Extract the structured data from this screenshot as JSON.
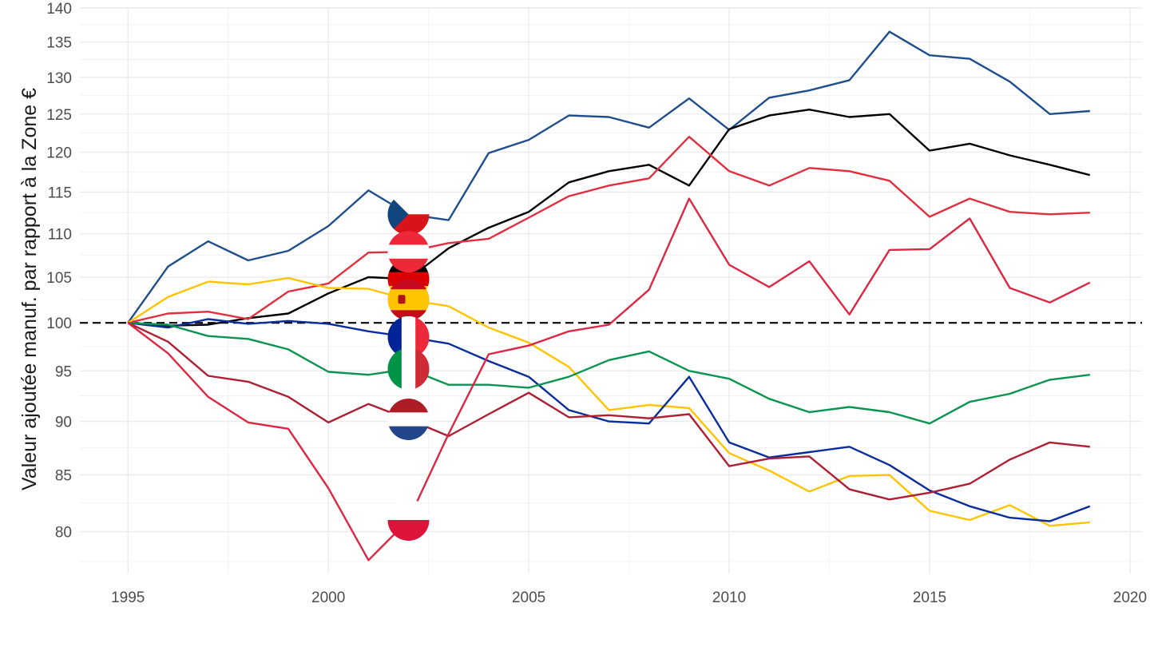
{
  "chart_data": {
    "type": "line",
    "title": "",
    "xlabel": "",
    "ylabel": "Valeur ajoutée manuf. par rapport à la Zone €",
    "xlim": [
      1993.8,
      2020.3
    ],
    "ylim": [
      76.5,
      140
    ],
    "y_scale": "log",
    "x_ticks": [
      "1995",
      "2000",
      "2005",
      "2010",
      "2015",
      "2020"
    ],
    "y_ticks": [
      "80",
      "85",
      "90",
      "95",
      "100",
      "105",
      "110",
      "115",
      "120",
      "125",
      "130",
      "135",
      "140"
    ],
    "grid": true,
    "reference_line": {
      "y": 100,
      "style": "dashed",
      "color": "#000000"
    },
    "x": [
      1995,
      1996,
      1997,
      1998,
      1999,
      2000,
      2001,
      2002,
      2003,
      2004,
      2005,
      2006,
      2007,
      2008,
      2009,
      2010,
      2011,
      2012,
      2013,
      2014,
      2015,
      2016,
      2017,
      2018,
      2019
    ],
    "flag_marker_x": 2002,
    "series": [
      {
        "flag": "czech-republic-flag",
        "color": "#1f4e8c",
        "values": [
          100,
          106.2,
          109.1,
          106.9,
          108.0,
          110.9,
          115.2,
          112.3,
          111.6,
          119.9,
          121.6,
          124.8,
          124.6,
          123.2,
          127.1,
          122.9,
          127.2,
          128.2,
          129.6,
          136.5,
          133.1,
          132.6,
          129.4,
          125.0,
          125.4
        ]
      },
      {
        "flag": "germany-flag",
        "color": "#000000",
        "values": [
          100,
          99.7,
          99.8,
          100.5,
          101.0,
          103.2,
          105.0,
          104.8,
          108.3,
          110.7,
          112.6,
          116.2,
          117.6,
          118.4,
          115.8,
          123.0,
          124.8,
          125.6,
          124.6,
          125.0,
          120.2,
          121.1,
          119.6,
          118.4,
          117.1
        ]
      },
      {
        "flag": "austria-flag",
        "color": "#e03040",
        "values": [
          100,
          101.0,
          101.2,
          100.4,
          103.4,
          104.3,
          107.8,
          107.9,
          108.9,
          109.4,
          111.9,
          114.5,
          115.8,
          116.7,
          122.0,
          117.6,
          115.8,
          118.0,
          117.6,
          116.4,
          112.0,
          114.2,
          112.6,
          112.3,
          112.5
        ]
      },
      {
        "flag": "spain-flag",
        "color": "#ffc400",
        "values": [
          100,
          102.8,
          104.5,
          104.2,
          104.9,
          103.8,
          103.7,
          102.5,
          101.8,
          99.5,
          97.9,
          95.4,
          91.1,
          91.6,
          91.3,
          87.0,
          85.4,
          83.5,
          84.9,
          85.0,
          81.8,
          81.0,
          82.3,
          80.5,
          80.8
        ]
      },
      {
        "flag": "france-flag",
        "color": "#0a2d9c",
        "values": [
          100,
          99.5,
          100.4,
          99.9,
          100.2,
          99.9,
          99.1,
          98.5,
          97.8,
          96.0,
          94.4,
          91.1,
          90.0,
          89.8,
          94.4,
          88.0,
          86.6,
          87.1,
          87.6,
          85.9,
          83.6,
          82.2,
          81.2,
          80.9,
          82.2
        ]
      },
      {
        "flag": "italy-flag",
        "color": "#0a9450",
        "values": [
          100,
          99.8,
          98.6,
          98.3,
          97.2,
          94.9,
          94.6,
          95.2,
          93.6,
          93.6,
          93.3,
          94.4,
          96.1,
          97.0,
          95.0,
          94.2,
          92.2,
          90.9,
          91.4,
          90.9,
          89.8,
          91.9,
          92.7,
          94.1,
          94.6
        ]
      },
      {
        "flag": "netherlands-flag",
        "color": "#ad1f32",
        "values": [
          100,
          98.0,
          94.5,
          93.9,
          92.4,
          89.9,
          91.7,
          90.2,
          88.6,
          90.7,
          92.8,
          90.4,
          90.6,
          90.3,
          90.7,
          85.8,
          86.5,
          86.7,
          83.7,
          82.8,
          83.4,
          84.2,
          86.4,
          88.0,
          87.6
        ]
      },
      {
        "flag": "poland-flag",
        "color": "#dc2743",
        "values": [
          100,
          96.8,
          92.4,
          89.9,
          89.3,
          83.8,
          77.6,
          81.0,
          88.8,
          96.7,
          97.6,
          99.1,
          99.8,
          103.6,
          114.2,
          106.4,
          103.9,
          106.8,
          100.9,
          108.1,
          108.2,
          111.8,
          103.8,
          102.2,
          104.4
        ]
      }
    ]
  }
}
